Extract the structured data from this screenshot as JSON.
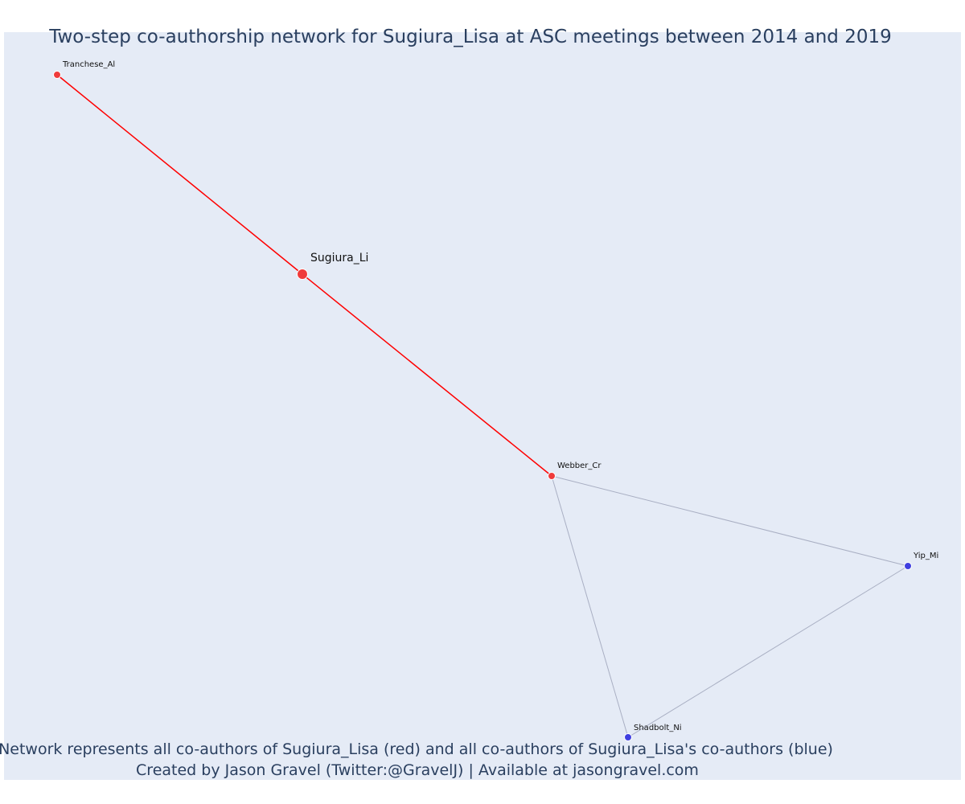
{
  "title": "Two-step co-authorship network for Sugiura_Lisa at ASC meetings between 2014 and 2019",
  "footnote_line1": "Network represents all co-authors of Sugiura_Lisa (red) and all co-authors of Sugiura_Lisa's co-authors (blue)",
  "footnote_line2": "Created by Jason Gravel (Twitter:@GravelJ) | Available at jasongravel.com",
  "colors": {
    "plot_background": "#e5ebf6",
    "first_degree_node": "#ef3b3b",
    "second_degree_node": "#3f3fe0",
    "first_degree_edge": "#ff0000",
    "second_degree_edge": "#a9afc3",
    "text": "#2a3f5f"
  },
  "nodes": [
    {
      "id": "Sugiura_Li",
      "label": "Sugiura_Li",
      "group": "focal"
    },
    {
      "id": "Tranchese_Al",
      "label": "Tranchese_Al",
      "group": "co-author"
    },
    {
      "id": "Webber_Cr",
      "label": "Webber_Cr",
      "group": "co-author"
    },
    {
      "id": "Yip_Mi",
      "label": "Yip_Mi",
      "group": "co-author-of-co-author"
    },
    {
      "id": "Shadbolt_Ni",
      "label": "Shadbolt_Ni",
      "group": "co-author-of-co-author"
    }
  ],
  "edges": [
    {
      "source": "Tranchese_Al",
      "target": "Sugiura_Li",
      "type": "first-degree"
    },
    {
      "source": "Sugiura_Li",
      "target": "Webber_Cr",
      "type": "first-degree"
    },
    {
      "source": "Webber_Cr",
      "target": "Yip_Mi",
      "type": "second-degree"
    },
    {
      "source": "Webber_Cr",
      "target": "Shadbolt_Ni",
      "type": "second-degree"
    },
    {
      "source": "Yip_Mi",
      "target": "Shadbolt_Ni",
      "type": "second-degree"
    }
  ]
}
